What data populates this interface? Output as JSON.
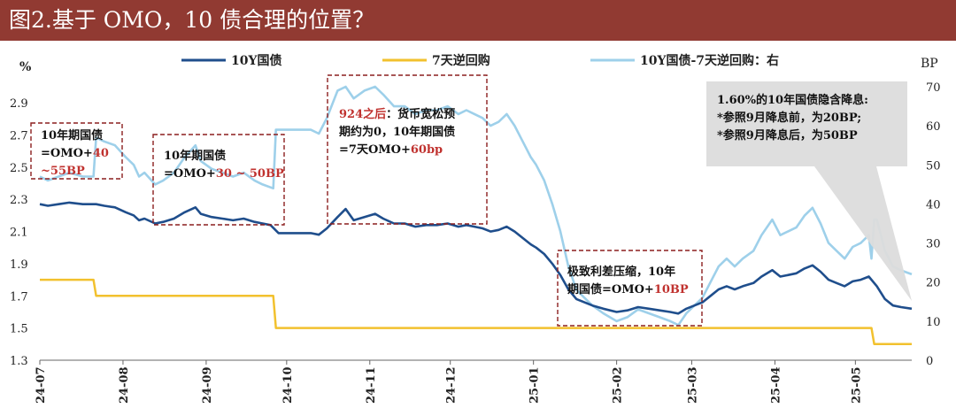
{
  "title": "图2.基于 OMO，10 债合理的位置？",
  "chart_data": {
    "type": "line",
    "title": "图2.基于 OMO，10 债合理的位置？",
    "left_axis": {
      "unit": "%",
      "min": 1.3,
      "max": 3.0,
      "ticks": [
        "1.3",
        "1.5",
        "1.7",
        "1.9",
        "2.1",
        "2.3",
        "2.5",
        "2.7",
        "2.9"
      ]
    },
    "right_axis": {
      "unit": "BP",
      "min": 0,
      "max": 70,
      "ticks": [
        "0",
        "10",
        "20",
        "30",
        "40",
        "50",
        "60",
        "70"
      ]
    },
    "x_ticks": [
      "24-07",
      "24-08",
      "24-09",
      "24-10",
      "24-11",
      "24-12",
      "25-01",
      "25-02",
      "25-03",
      "25-04",
      "25-05"
    ],
    "x_range": [
      "2024-07-01",
      "2025-05-22"
    ],
    "legend": {
      "placement": "top",
      "items": [
        {
          "label": "10Y国债",
          "color": "#1f4e8c"
        },
        {
          "label": "7天逆回购",
          "color": "#f2c12e"
        },
        {
          "label": "10Y国债-7天逆回购：右",
          "color": "#9ed0ea"
        }
      ]
    },
    "series": [
      {
        "name": "10Y国债",
        "axis": "left",
        "color": "#1f4e8c",
        "points": [
          [
            "2024-07-01",
            2.27
          ],
          [
            "2024-07-04",
            2.26
          ],
          [
            "2024-07-08",
            2.27
          ],
          [
            "2024-07-12",
            2.28
          ],
          [
            "2024-07-17",
            2.27
          ],
          [
            "2024-07-22",
            2.27
          ],
          [
            "2024-07-25",
            2.26
          ],
          [
            "2024-07-29",
            2.25
          ],
          [
            "2024-08-02",
            2.22
          ],
          [
            "2024-08-05",
            2.2
          ],
          [
            "2024-08-07",
            2.17
          ],
          [
            "2024-08-09",
            2.18
          ],
          [
            "2024-08-13",
            2.15
          ],
          [
            "2024-08-16",
            2.16
          ],
          [
            "2024-08-20",
            2.18
          ],
          [
            "2024-08-24",
            2.22
          ],
          [
            "2024-08-28",
            2.25
          ],
          [
            "2024-08-30",
            2.21
          ],
          [
            "2024-09-03",
            2.19
          ],
          [
            "2024-09-07",
            2.18
          ],
          [
            "2024-09-11",
            2.17
          ],
          [
            "2024-09-15",
            2.18
          ],
          [
            "2024-09-19",
            2.16
          ],
          [
            "2024-09-22",
            2.15
          ],
          [
            "2024-09-25",
            2.14
          ],
          [
            "2024-09-28",
            2.09
          ],
          [
            "2024-10-02",
            2.09
          ],
          [
            "2024-10-06",
            2.09
          ],
          [
            "2024-10-10",
            2.09
          ],
          [
            "2024-10-13",
            2.08
          ],
          [
            "2024-10-16",
            2.12
          ],
          [
            "2024-10-20",
            2.19
          ],
          [
            "2024-10-23",
            2.24
          ],
          [
            "2024-10-26",
            2.17
          ],
          [
            "2024-10-30",
            2.19
          ],
          [
            "2024-11-03",
            2.21
          ],
          [
            "2024-11-06",
            2.18
          ],
          [
            "2024-11-10",
            2.15
          ],
          [
            "2024-11-14",
            2.15
          ],
          [
            "2024-11-18",
            2.13
          ],
          [
            "2024-11-22",
            2.14
          ],
          [
            "2024-11-26",
            2.14
          ],
          [
            "2024-11-30",
            2.15
          ],
          [
            "2024-12-04",
            2.13
          ],
          [
            "2024-12-07",
            2.14
          ],
          [
            "2024-12-10",
            2.13
          ],
          [
            "2024-12-13",
            2.12
          ],
          [
            "2024-12-16",
            2.1
          ],
          [
            "2024-12-19",
            2.11
          ],
          [
            "2024-12-22",
            2.13
          ],
          [
            "2024-12-25",
            2.1
          ],
          [
            "2024-12-28",
            2.06
          ],
          [
            "2024-12-31",
            2.02
          ],
          [
            "2025-01-02",
            2.0
          ],
          [
            "2025-01-05",
            1.96
          ],
          [
            "2025-01-08",
            1.9
          ],
          [
            "2025-01-11",
            1.83
          ],
          [
            "2025-01-14",
            1.74
          ],
          [
            "2025-01-17",
            1.68
          ],
          [
            "2025-01-20",
            1.66
          ],
          [
            "2025-01-23",
            1.64
          ],
          [
            "2025-01-27",
            1.62
          ],
          [
            "2025-02-01",
            1.6
          ],
          [
            "2025-02-05",
            1.61
          ],
          [
            "2025-02-09",
            1.63
          ],
          [
            "2025-02-13",
            1.62
          ],
          [
            "2025-02-17",
            1.61
          ],
          [
            "2025-02-21",
            1.6
          ],
          [
            "2025-02-24",
            1.59
          ],
          [
            "2025-02-27",
            1.62
          ],
          [
            "2025-03-02",
            1.64
          ],
          [
            "2025-03-05",
            1.66
          ],
          [
            "2025-03-08",
            1.7
          ],
          [
            "2025-03-11",
            1.74
          ],
          [
            "2025-03-14",
            1.76
          ],
          [
            "2025-03-17",
            1.74
          ],
          [
            "2025-03-20",
            1.76
          ],
          [
            "2025-03-24",
            1.78
          ],
          [
            "2025-03-27",
            1.82
          ],
          [
            "2025-03-31",
            1.86
          ],
          [
            "2025-04-03",
            1.82
          ],
          [
            "2025-04-06",
            1.83
          ],
          [
            "2025-04-09",
            1.84
          ],
          [
            "2025-04-12",
            1.87
          ],
          [
            "2025-04-15",
            1.89
          ],
          [
            "2025-04-18",
            1.85
          ],
          [
            "2025-04-21",
            1.8
          ],
          [
            "2025-04-24",
            1.78
          ],
          [
            "2025-04-27",
            1.76
          ],
          [
            "2025-04-30",
            1.79
          ],
          [
            "2025-05-03",
            1.8
          ],
          [
            "2025-05-06",
            1.82
          ],
          [
            "2025-05-09",
            1.76
          ],
          [
            "2025-05-12",
            1.68
          ],
          [
            "2025-05-15",
            1.64
          ],
          [
            "2025-05-18",
            1.63
          ],
          [
            "2025-05-22",
            1.62
          ]
        ]
      },
      {
        "name": "7天逆回购",
        "axis": "left",
        "color": "#f2c12e",
        "points": [
          [
            "2024-07-01",
            1.8
          ],
          [
            "2024-07-21",
            1.8
          ],
          [
            "2024-07-22",
            1.7
          ],
          [
            "2024-09-26",
            1.7
          ],
          [
            "2024-09-27",
            1.5
          ],
          [
            "2025-05-07",
            1.5
          ],
          [
            "2025-05-08",
            1.4
          ],
          [
            "2025-05-22",
            1.4
          ]
        ]
      },
      {
        "name": "10Y国债-7天逆回购：右",
        "axis": "right",
        "color": "#9ed0ea",
        "points": [
          [
            "2024-07-01",
            47
          ],
          [
            "2024-07-04",
            46
          ],
          [
            "2024-07-08",
            47
          ],
          [
            "2024-07-12",
            48
          ],
          [
            "2024-07-17",
            47
          ],
          [
            "2024-07-21",
            47
          ],
          [
            "2024-07-22",
            57
          ],
          [
            "2024-07-25",
            56
          ],
          [
            "2024-07-29",
            55
          ],
          [
            "2024-08-02",
            52
          ],
          [
            "2024-08-05",
            50
          ],
          [
            "2024-08-07",
            47
          ],
          [
            "2024-08-09",
            48
          ],
          [
            "2024-08-13",
            45
          ],
          [
            "2024-08-16",
            46
          ],
          [
            "2024-08-20",
            48
          ],
          [
            "2024-08-24",
            52
          ],
          [
            "2024-08-28",
            55
          ],
          [
            "2024-08-30",
            51
          ],
          [
            "2024-09-03",
            49
          ],
          [
            "2024-09-07",
            48
          ],
          [
            "2024-09-11",
            47
          ],
          [
            "2024-09-15",
            48
          ],
          [
            "2024-09-19",
            46
          ],
          [
            "2024-09-22",
            45
          ],
          [
            "2024-09-26",
            44
          ],
          [
            "2024-09-27",
            59
          ],
          [
            "2024-10-02",
            59
          ],
          [
            "2024-10-06",
            59
          ],
          [
            "2024-10-10",
            59
          ],
          [
            "2024-10-13",
            58
          ],
          [
            "2024-10-16",
            62
          ],
          [
            "2024-10-20",
            69
          ],
          [
            "2024-10-23",
            74
          ],
          [
            "2024-10-26",
            67
          ],
          [
            "2024-10-30",
            69
          ],
          [
            "2024-11-03",
            71
          ],
          [
            "2024-11-06",
            68
          ],
          [
            "2024-11-10",
            65
          ],
          [
            "2024-11-14",
            65
          ],
          [
            "2024-11-18",
            63
          ],
          [
            "2024-11-22",
            64
          ],
          [
            "2024-11-26",
            64
          ],
          [
            "2024-11-30",
            65
          ],
          [
            "2024-12-04",
            63
          ],
          [
            "2024-12-07",
            64
          ],
          [
            "2024-12-10",
            63
          ],
          [
            "2024-12-13",
            62
          ],
          [
            "2024-12-16",
            60
          ],
          [
            "2024-12-19",
            61
          ],
          [
            "2024-12-22",
            63
          ],
          [
            "2024-12-25",
            60
          ],
          [
            "2024-12-28",
            56
          ],
          [
            "2024-12-31",
            52
          ],
          [
            "2025-01-02",
            50
          ],
          [
            "2025-01-05",
            46
          ],
          [
            "2025-01-08",
            40
          ],
          [
            "2025-01-11",
            33
          ],
          [
            "2025-01-14",
            24
          ],
          [
            "2025-01-17",
            18
          ],
          [
            "2025-01-20",
            16
          ],
          [
            "2025-01-23",
            14
          ],
          [
            "2025-01-27",
            12
          ],
          [
            "2025-02-01",
            10
          ],
          [
            "2025-02-05",
            11
          ],
          [
            "2025-02-09",
            13
          ],
          [
            "2025-02-13",
            12
          ],
          [
            "2025-02-17",
            11
          ],
          [
            "2025-02-21",
            10
          ],
          [
            "2025-02-24",
            9
          ],
          [
            "2025-02-27",
            12
          ],
          [
            "2025-03-02",
            14
          ],
          [
            "2025-03-05",
            16
          ],
          [
            "2025-03-08",
            20
          ],
          [
            "2025-03-11",
            24
          ],
          [
            "2025-03-14",
            26
          ],
          [
            "2025-03-17",
            24
          ],
          [
            "2025-03-20",
            26
          ],
          [
            "2025-03-24",
            28
          ],
          [
            "2025-03-27",
            32
          ],
          [
            "2025-03-31",
            36
          ],
          [
            "2025-04-03",
            32
          ],
          [
            "2025-04-06",
            33
          ],
          [
            "2025-04-09",
            34
          ],
          [
            "2025-04-12",
            37
          ],
          [
            "2025-04-15",
            39
          ],
          [
            "2025-04-18",
            35
          ],
          [
            "2025-04-21",
            30
          ],
          [
            "2025-04-24",
            28
          ],
          [
            "2025-04-27",
            26
          ],
          [
            "2025-04-30",
            29
          ],
          [
            "2025-05-03",
            30
          ],
          [
            "2025-05-06",
            32
          ],
          [
            "2025-05-07",
            26
          ],
          [
            "2025-05-08",
            36
          ],
          [
            "2025-05-09",
            36
          ],
          [
            "2025-05-12",
            28
          ],
          [
            "2025-05-15",
            24
          ],
          [
            "2025-05-18",
            23
          ],
          [
            "2025-05-22",
            22
          ]
        ]
      }
    ],
    "annotations": [
      {
        "lines": [
          [
            {
              "t": "10年期国债"
            }
          ],
          [
            {
              "t": "=OMO+"
            },
            {
              "t": "40",
              "hl": true
            }
          ],
          [
            {
              "t": "~55BP",
              "hl": true
            }
          ]
        ]
      },
      {
        "lines": [
          [
            {
              "t": "10年期国债"
            }
          ],
          [
            {
              "t": "=OMO+"
            },
            {
              "t": "30 ~ 50BP",
              "hl": true
            }
          ]
        ]
      },
      {
        "lines": [
          [
            {
              "t": "924之后",
              "hl": true
            },
            {
              "t": "：货币宽松预"
            }
          ],
          [
            {
              "t": "期约为0，10年期国债"
            }
          ],
          [
            {
              "t": "=7天OMO+"
            },
            {
              "t": "60bp",
              "hl": true
            }
          ]
        ]
      },
      {
        "lines": [
          [
            {
              "t": "极致利差压缩，10年"
            }
          ],
          [
            {
              "t": "期国债=OMO+"
            },
            {
              "t": "10BP",
              "hl": true
            }
          ]
        ]
      },
      {
        "lines": [
          [
            {
              "t": "1.60%的10年国债隐含降息:"
            }
          ],
          [
            {
              "t": "*参照9月降息前，为20BP;"
            }
          ],
          [
            {
              "t": "*参照9月降息后，为50BP"
            }
          ]
        ]
      }
    ]
  }
}
